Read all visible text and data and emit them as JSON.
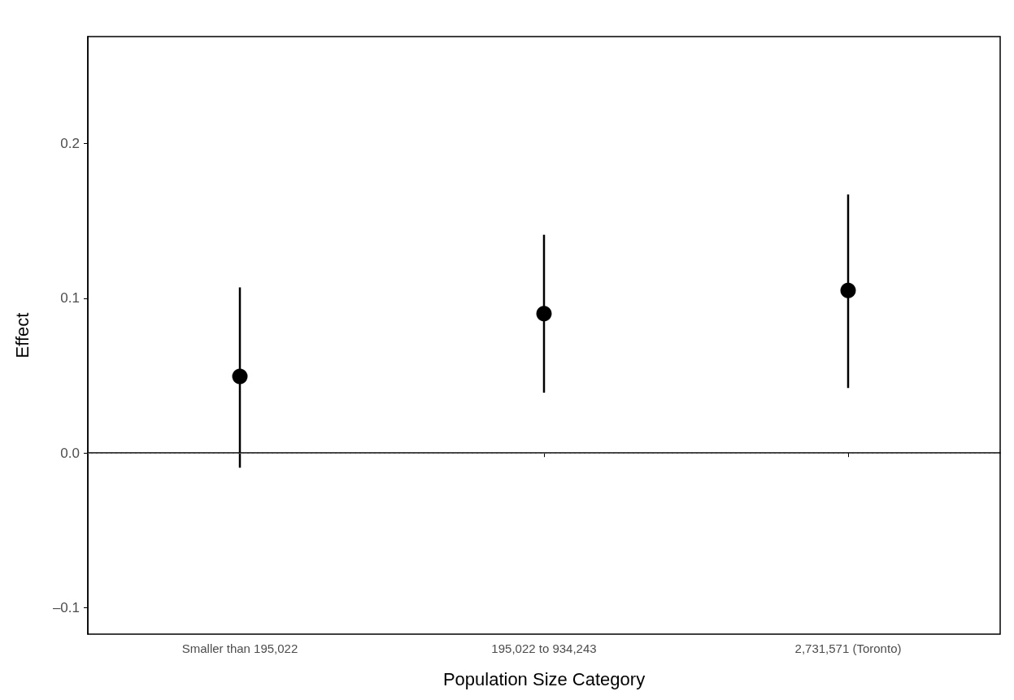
{
  "chart_data": {
    "type": "scatter",
    "xlabel": "Population Size Category",
    "ylabel": "Effect",
    "categories": [
      "Smaller than 195,022",
      "195,022 to 934,243",
      "2,731,571 (Toronto)"
    ],
    "series": [
      {
        "color": "#000000",
        "values": [
          0.0495,
          0.09,
          0.105
        ],
        "errors": [
          [
            -0.0095,
            0.107
          ],
          [
            0.039,
            0.141
          ],
          [
            0.042,
            0.167
          ]
        ]
      }
    ],
    "ylim": [
      -0.117,
      0.269
    ],
    "yticks": [
      {
        "value": -0.1,
        "label": "–0.1"
      },
      "0.0",
      0.1,
      0.2
    ],
    "ref_lines": [
      {
        "axis": "y",
        "value": 0,
        "color": "#555555",
        "line_style": "dashed"
      }
    ],
    "marker": "circle",
    "grid": false
  }
}
